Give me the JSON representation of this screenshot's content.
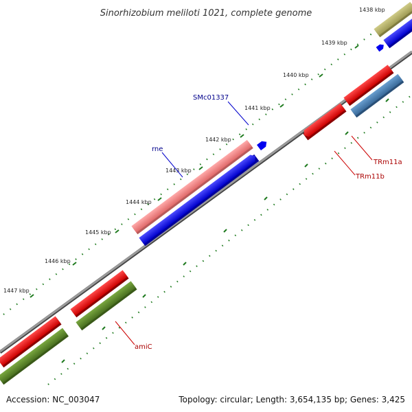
{
  "title": "Sinorhizobium meliloti 1021, complete genome",
  "footer": {
    "accession": "Accession: NC_003047",
    "summary": "Topology: circular; Length: 3,654,135 bp; Genes: 3,425"
  },
  "ticks": [
    "1438 kbp",
    "1439 kbp",
    "1440 kbp",
    "1441 kbp",
    "1442 kbp",
    "1443 kbp",
    "1444 kbp",
    "1445 kbp",
    "1446 kbp",
    "1447 kbp"
  ],
  "gene_labels": {
    "smc01337": "SMc01337",
    "rne": "rne",
    "trm11a": "TRm11a",
    "trm11b": "TRm11b",
    "amic": "amiC"
  },
  "colors": {
    "backbone": "#7a7a7a",
    "cds": "#0000ee",
    "cds_light": "#4a7fb5",
    "rna_red": "#ee0000",
    "rna_pink": "#f08080",
    "olive": "#5f8a2a",
    "khaki": "#b8b46a",
    "tick_green": "#1e7a1e",
    "label_blue": "#00008b",
    "label_red": "#aa0000"
  }
}
